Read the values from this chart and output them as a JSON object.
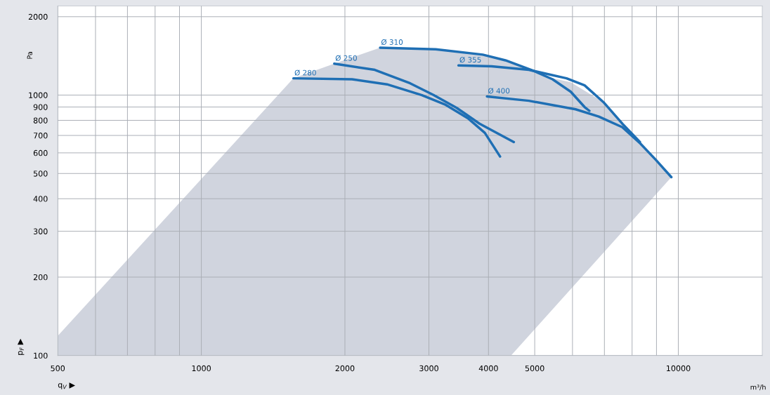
{
  "chart_data": {
    "type": "line",
    "xlabel": "q$_{V}$ ▶",
    "ylabel": "p$_{F}$ ▶",
    "log": "xy",
    "grid": true,
    "legend": false,
    "marker": "none",
    "line_style": "solid",
    "xlim": [
      500,
      15000
    ],
    "ylim": [
      100,
      2200
    ],
    "xticks": [
      500,
      {
        "value": 600,
        "label": null
      },
      {
        "value": 700,
        "label": null
      },
      {
        "value": 800,
        "label": null
      },
      {
        "value": 900,
        "label": null
      },
      1000,
      2000,
      3000,
      4000,
      5000,
      {
        "value": 6000,
        "label": null
      },
      {
        "value": 7000,
        "label": null
      },
      {
        "value": 8000,
        "label": null
      },
      {
        "value": 9000,
        "label": null
      },
      10000
    ],
    "yticks": [
      100,
      200,
      300,
      400,
      500,
      600,
      700,
      800,
      900,
      1000,
      2000
    ],
    "annotations": [
      "Pa",
      "m³/h"
    ],
    "series": [
      {
        "type": "area",
        "color": "#d0d4de",
        "x": [
          500,
          1560,
          1900,
          2370,
          3100,
          3890,
          4460,
          4970,
          5450,
          5950,
          6970,
          7630,
          8310,
          8980,
          9670,
          4460,
          500
        ],
        "values": [
          119,
          1160,
          1320,
          1520,
          1500,
          1430,
          1340,
          1240,
          1160,
          1120,
          939,
          777,
          660,
          563,
          484,
          100,
          100
        ]
      },
      {
        "name": "Ø 280",
        "color": "#1f6fb4",
        "x": [
          1560,
          2070,
          2450,
          2900,
          3240,
          3630,
          3930,
          4230
        ],
        "values": [
          1160,
          1150,
          1100,
          1000,
          921,
          812,
          716,
          581
        ]
      },
      {
        "name": "Ø 250",
        "color": "#1f6fb4",
        "x": [
          1900,
          2310,
          2740,
          3070,
          3430,
          3830,
          4520
        ],
        "values": [
          1320,
          1250,
          1110,
          1000,
          893,
          777,
          660
        ]
      },
      {
        "name": "Ø 310",
        "color": "#1f6fb4",
        "x": [
          2370,
          3100,
          3890,
          4340,
          4970,
          5450,
          5950,
          6360,
          6510
        ],
        "values": [
          1520,
          1500,
          1430,
          1360,
          1240,
          1150,
          1030,
          900,
          870
        ]
      },
      {
        "name": "Ø 355",
        "color": "#1f6fb4",
        "x": [
          3460,
          4060,
          4860,
          5830,
          6360,
          6970,
          7630,
          8310
        ],
        "values": [
          1300,
          1290,
          1250,
          1160,
          1090,
          939,
          777,
          660
        ]
      },
      {
        "name": "Ø 400",
        "color": "#1f6fb4",
        "x": [
          3970,
          4860,
          6090,
          6810,
          7630,
          8330,
          8980,
          9670
        ],
        "values": [
          988,
          951,
          882,
          827,
          753,
          651,
          563,
          484
        ]
      }
    ]
  }
}
